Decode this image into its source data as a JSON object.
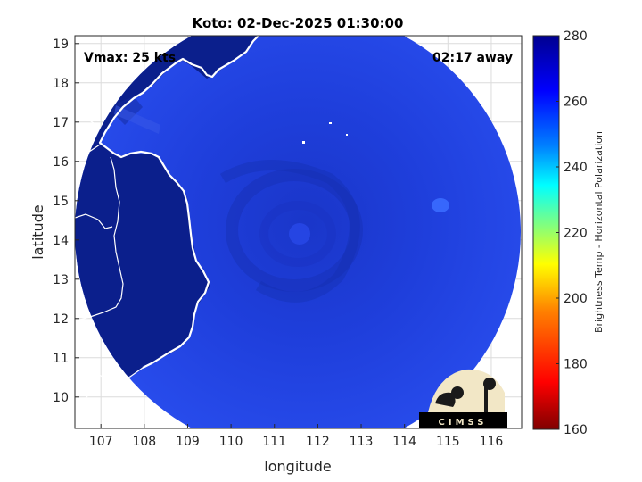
{
  "title": "Koto: 02-Dec-2025 01:30:00",
  "annotations": {
    "vmax": "Vmax: 25 kts",
    "time_away": "02:17 away"
  },
  "axes": {
    "xlabel": "longitude",
    "ylabel": "latitude",
    "x_range": [
      106.4,
      116.7
    ],
    "y_range": [
      9.2,
      19.2
    ],
    "x_ticks": [
      "107",
      "108",
      "109",
      "110",
      "111",
      "112",
      "113",
      "114",
      "115",
      "116"
    ],
    "y_ticks": [
      "10",
      "11",
      "12",
      "13",
      "14",
      "15",
      "16",
      "17",
      "18",
      "19"
    ],
    "grid": true
  },
  "colorbar": {
    "label": "Brightness Temp - Horizontal Polarization",
    "range": [
      160,
      280
    ],
    "ticks": [
      "280",
      "260",
      "240",
      "220",
      "200",
      "180",
      "160"
    ],
    "colors": [
      "#800000",
      "#ff0000",
      "#ff8000",
      "#ffff00",
      "#80ff80",
      "#00ffff",
      "#0080ff",
      "#0000ff",
      "#000090"
    ]
  },
  "swath": {
    "center_lon": 111.55,
    "center_lat": 14.3,
    "base_color": "#1f3fdc",
    "land_color": "#0b1f8c",
    "eye_lon": 111.6,
    "eye_lat": 14.4
  },
  "logo": {
    "text": "CIMSS"
  }
}
